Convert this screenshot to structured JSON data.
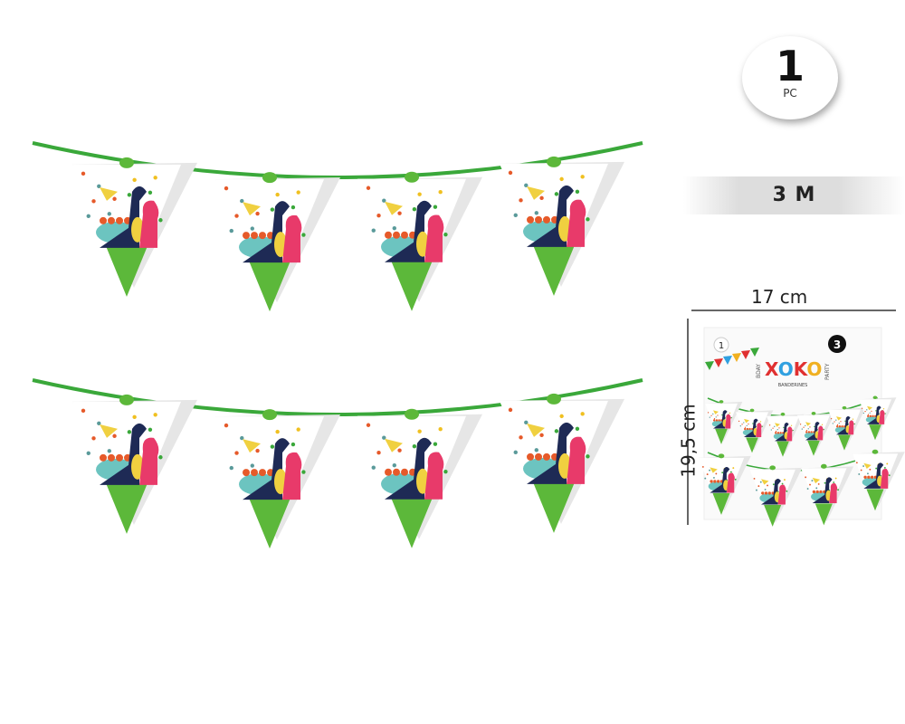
{
  "quantity_badge": {
    "number": "1",
    "unit": "PC"
  },
  "length_label": "3 M",
  "dimensions": {
    "width": "17 cm",
    "height": "19,5 cm"
  },
  "package": {
    "brand": "XOKO",
    "left_tag": "BDAY",
    "right_tag": "PARTY",
    "product": "BANDERINES",
    "count_left": "1",
    "count_right": "3"
  },
  "colors": {
    "string": "#3aa83a",
    "pennant_tip": "#5cb83a",
    "navy_dino": "#1e2a55",
    "pink_dino": "#e83a6a",
    "teal_dino": "#6cc4c0"
  },
  "garland": {
    "rows": 2,
    "pennants_per_row": 4
  }
}
